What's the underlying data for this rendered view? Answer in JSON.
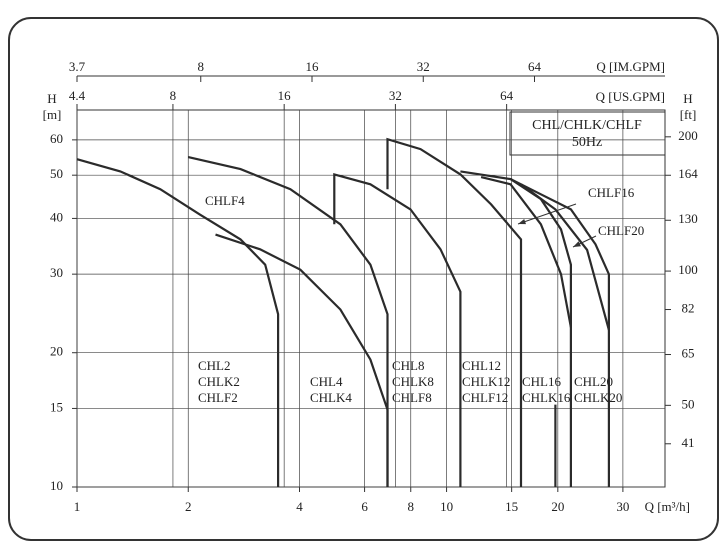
{
  "chart_data": {
    "type": "line",
    "log_x": true,
    "log_y": true,
    "grid": true,
    "color": "#2b2b2b",
    "title": "CHL/CHLK/CHLF",
    "subtitle": "50Hz",
    "xlabel": "Q [m³/h]",
    "ylabel": "H",
    "ylabel_unit": "[m]",
    "y2label": "H",
    "y2label_unit": "[ft]",
    "x2label": "Q [US.GPM]",
    "x3label": "Q [IM.GPM]",
    "xlim": [
      1,
      39
    ],
    "xticks": [
      1,
      2,
      4,
      6,
      8,
      10,
      15,
      20,
      30
    ],
    "ylim": [
      10,
      70
    ],
    "yticks": [
      10,
      15,
      20,
      30,
      40,
      50,
      60
    ],
    "y2lim": [
      32.8,
      229.7
    ],
    "y2ticks": [
      41,
      50,
      65,
      82,
      100,
      130,
      164,
      200
    ],
    "x2lim": [
      4.4,
      171.7
    ],
    "x2ticks": [
      4.4,
      8,
      16,
      32,
      64
    ],
    "x3lim": [
      3.7,
      144.3
    ],
    "x3ticks": [
      3.7,
      8,
      16,
      32,
      64
    ],
    "series": [
      {
        "x": [
          1,
          1.31,
          1.68,
          2.15,
          2.77,
          3.23,
          3.5,
          3.5
        ],
        "values": [
          54.3,
          51.0,
          46.5,
          40.8,
          35.9,
          31.5,
          24.4,
          10
        ]
      },
      {
        "x": [
          2,
          2.77,
          3.78,
          5.16,
          6.22,
          6.92,
          6.92
        ],
        "values": [
          54.9,
          51.6,
          46.5,
          38.8,
          31.5,
          24.4,
          10
        ]
      },
      {
        "x": [
          2.37,
          3.13,
          4.02,
          5.16,
          6.22,
          6.92,
          6.92
        ],
        "values": [
          36.8,
          34.1,
          30.7,
          25.0,
          19.3,
          14.9,
          10
        ]
      },
      {
        "x": [
          4.97,
          4.97,
          6.22,
          7.99,
          9.63,
          10.9,
          10.9
        ],
        "values": [
          38.8,
          50.2,
          47.7,
          41.9,
          34.1,
          27.4,
          10
        ]
      },
      {
        "x": [
          6.92,
          6.92,
          8.5,
          10.9,
          13.2,
          15.9,
          15.9
        ],
        "values": [
          46.5,
          60.2,
          57.2,
          50.2,
          43.0,
          35.9,
          10
        ]
      },
      {
        "x": [
          10.9,
          14.9,
          18.0,
          20.4,
          21.7,
          21.7
        ],
        "values": [
          51.0,
          49.0,
          44.2,
          37.8,
          31.5,
          10
        ]
      },
      {
        "x": [
          14.9,
          18.0,
          21.7,
          25.3,
          27.5,
          27.5
        ],
        "values": [
          49.0,
          45.3,
          41.9,
          35.0,
          30.0,
          10
        ]
      },
      {
        "x": [
          12.4,
          14.9,
          18.0,
          20.4,
          21.7
        ],
        "values": [
          49.5,
          47.7,
          38.8,
          30.0,
          22.8
        ]
      },
      {
        "x": [
          15.9,
          19.7,
          24.0,
          27.5
        ],
        "values": [
          47.7,
          41.9,
          34.0,
          22.5
        ]
      },
      {
        "x": [
          19.7,
          19.7
        ],
        "values": [
          15.3,
          10
        ]
      }
    ],
    "model_labels": [
      [
        "CHL2",
        "CHLK2",
        "CHLF2"
      ],
      [
        "CHL4",
        "CHLK4"
      ],
      [
        "CHL8",
        "CHLK8",
        "CHLF8"
      ],
      [
        "CHL12",
        "CHLK12",
        "CHLF12"
      ],
      [
        "CHL16",
        "CHLK16"
      ],
      [
        "CHL20",
        "CHLK20"
      ]
    ],
    "curve_labels": [
      "CHLF4",
      "CHLF16",
      "CHLF20"
    ]
  }
}
